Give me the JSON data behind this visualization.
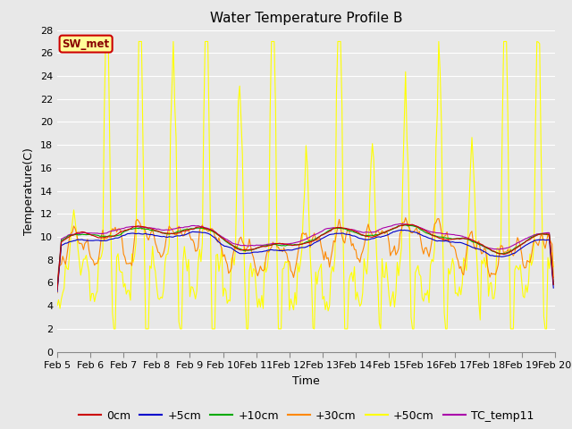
{
  "title": "Water Temperature Profile B",
  "xlabel": "Time",
  "ylabel": "Temperature(C)",
  "ylim": [
    0,
    28
  ],
  "yticks": [
    0,
    2,
    4,
    6,
    8,
    10,
    12,
    14,
    16,
    18,
    20,
    22,
    24,
    26,
    28
  ],
  "date_labels": [
    "Feb 5",
    "Feb 6",
    "Feb 7",
    "Feb 8",
    "Feb 9",
    "Feb 10",
    "Feb 11",
    "Feb 12",
    "Feb 13",
    "Feb 14",
    "Feb 15",
    "Feb 16",
    "Feb 17",
    "Feb 18",
    "Feb 19",
    "Feb 20"
  ],
  "series_colors": {
    "0cm": "#cc0000",
    "+5cm": "#0000cc",
    "+10cm": "#00aa00",
    "+30cm": "#ff8800",
    "+50cm": "#ffff00",
    "TC_temp11": "#aa00aa"
  },
  "sw_met_box_facecolor": "#ffff99",
  "sw_met_box_edgecolor": "#cc0000",
  "sw_met_text_color": "#880000",
  "fig_facecolor": "#e8e8e8",
  "plot_facecolor": "#e8e8e8",
  "grid_color": "#ffffff",
  "title_fontsize": 11,
  "axis_fontsize": 8,
  "label_fontsize": 9,
  "legend_fontsize": 9,
  "line_width": 0.8
}
